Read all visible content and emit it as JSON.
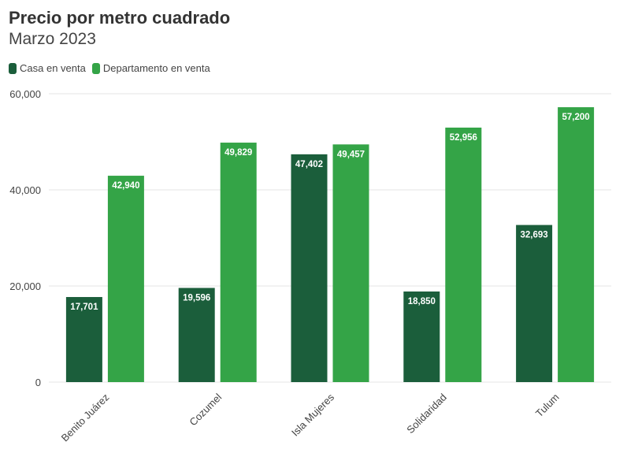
{
  "chart_data": {
    "type": "bar",
    "title": "Precio por metro cuadrado",
    "subtitle": "Marzo 2023",
    "categories": [
      "Benito Juárez",
      "Cozumel",
      "Isla Mujeres",
      "Solidaridad",
      "Tulum"
    ],
    "series": [
      {
        "name": "Casa en venta",
        "color": "#1b5e3b",
        "values": [
          17701,
          19596,
          47402,
          18850,
          32693
        ],
        "labels": [
          "17,701",
          "19,596",
          "47,402",
          "18,850",
          "32,693"
        ]
      },
      {
        "name": "Departamento en venta",
        "color": "#34a447",
        "values": [
          42940,
          49829,
          49457,
          52956,
          57200
        ],
        "labels": [
          "42,940",
          "49,829",
          "49,457",
          "52,956",
          "57,200"
        ]
      }
    ],
    "ylim": [
      0,
      60000
    ],
    "yticks": [
      0,
      20000,
      40000,
      60000
    ],
    "ytick_labels": [
      "0",
      "20,000",
      "40,000",
      "60,000"
    ],
    "grid": true,
    "legend": "top-left"
  }
}
